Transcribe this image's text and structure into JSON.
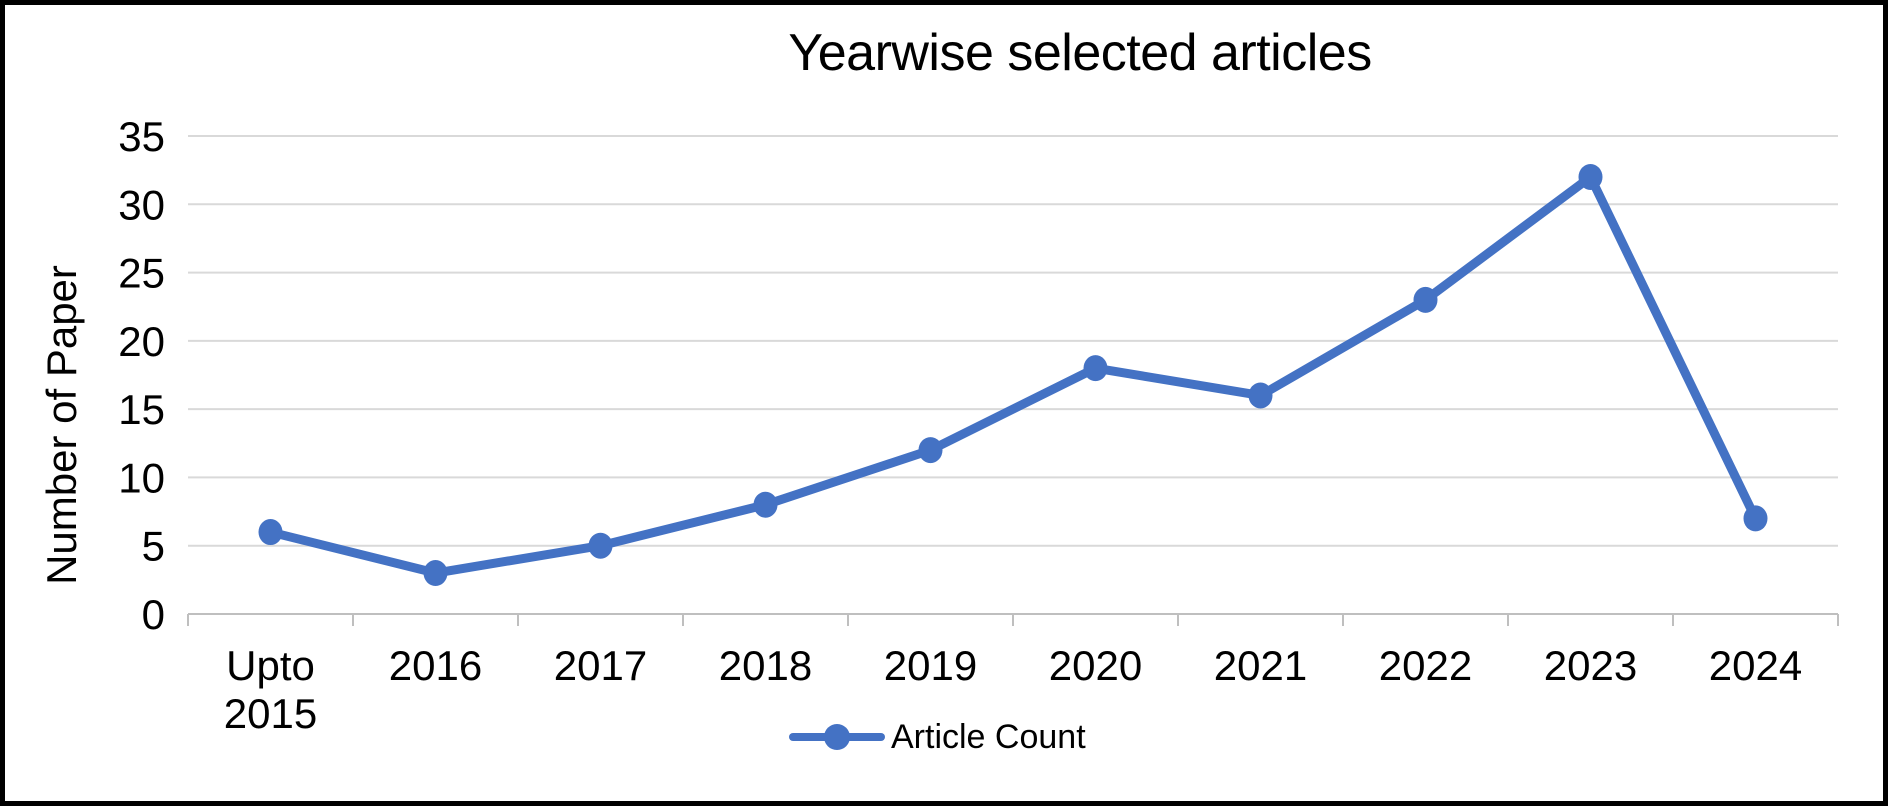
{
  "chart": {
    "title": "Yearwise selected articles",
    "y_axis_title": "Number of Paper",
    "legend_label": "Article Count"
  },
  "chart_data": {
    "type": "line",
    "title": "Yearwise selected articles",
    "xlabel": "",
    "ylabel": "Number of Paper",
    "categories": [
      "Upto 2015",
      "2016",
      "2017",
      "2018",
      "2019",
      "2020",
      "2021",
      "2022",
      "2023",
      "2024"
    ],
    "series": [
      {
        "name": "Article Count",
        "values": [
          6,
          3,
          5,
          8,
          12,
          18,
          16,
          23,
          32,
          7
        ]
      }
    ],
    "ylim": [
      0,
      35
    ],
    "ytick_step": 5,
    "yticks": [
      0,
      5,
      10,
      15,
      20,
      25,
      30,
      35
    ],
    "grid": true,
    "legend_position": "bottom",
    "colors": {
      "series": "#4472C4",
      "gridline": "#D9D9D9",
      "axis": "#BFBFBF",
      "text": "#000000",
      "frame_border": "#000000",
      "background": "#FFFFFF"
    }
  }
}
